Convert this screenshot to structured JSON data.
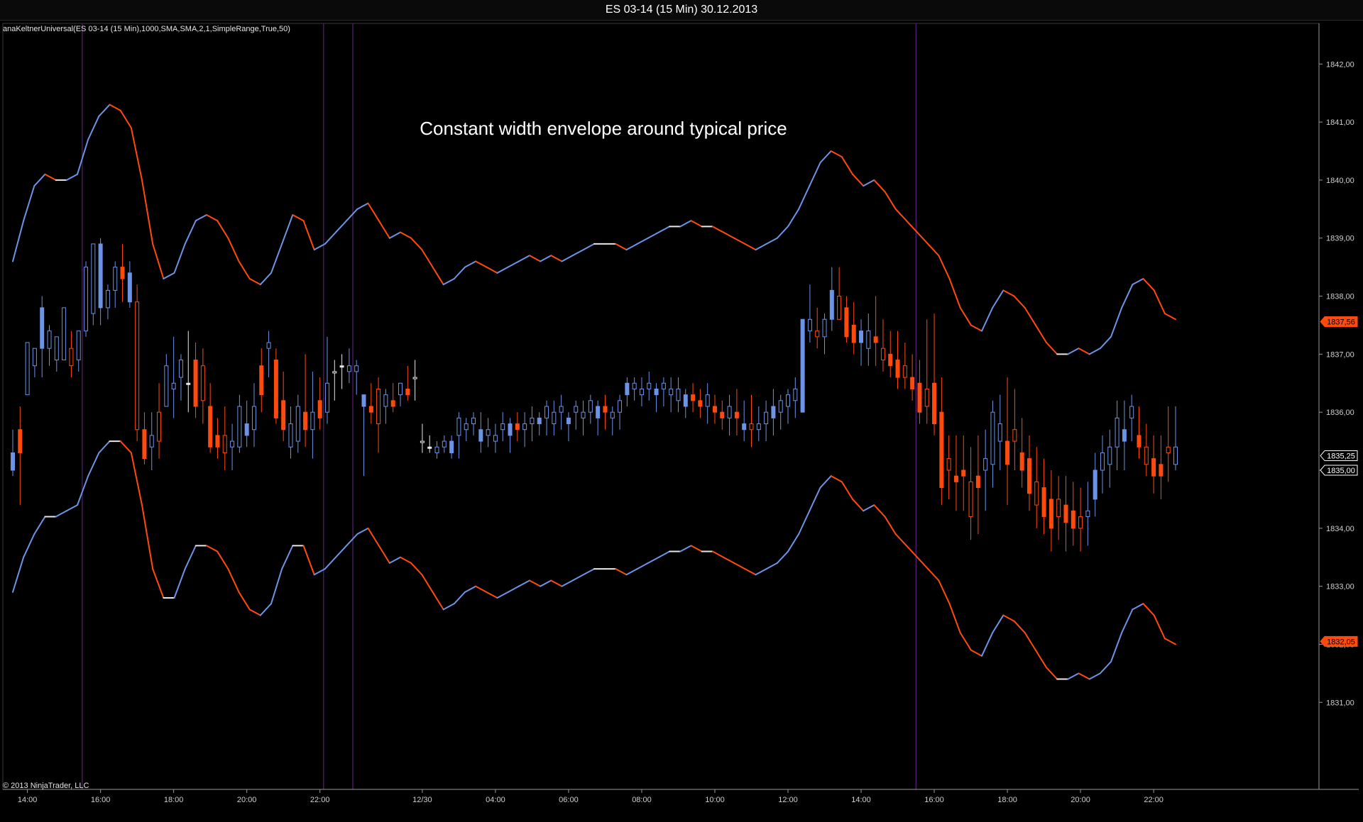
{
  "window": {
    "title": "ES 03-14 (15 Min)  30.12.2013"
  },
  "indicator_label": "anaKeltnerUniversal(ES 03-14 (15 Min),1000,SMA,SMA,2,1,SimpleRange,True,50)",
  "copyright": "© 2013 NinjaTrader, LLC",
  "colors": {
    "background": "#000000",
    "up": "#6d93e6",
    "down": "#ff4a0d",
    "neutral": "#e8e8e8",
    "session_line": "#5a1f7a",
    "axis": "#9a9a9a"
  },
  "chart_data": {
    "type": "candlestick",
    "title": "Constant width envelope around typical price",
    "x_ticks": [
      "14:00",
      "16:00",
      "18:00",
      "20:00",
      "22:00",
      "12/30",
      "04:00",
      "06:00",
      "08:00",
      "10:00",
      "12:00",
      "14:00",
      "16:00",
      "18:00",
      "20:00",
      "22:00"
    ],
    "x_tick_index": [
      2,
      12,
      22,
      32,
      42,
      56,
      66,
      76,
      86,
      96,
      106,
      116,
      126,
      136,
      146,
      156
    ],
    "y_ticks": [
      "1831,00",
      "1832,00",
      "1833,00",
      "1834,00",
      "1835,00",
      "1836,00",
      "1837,00",
      "1838,00",
      "1839,00",
      "1840,00",
      "1841,00",
      "1842,00"
    ],
    "y_range": [
      1829.5,
      1842.7
    ],
    "price_markers": [
      {
        "label": "1837,56",
        "value": 1837.56,
        "style": "down"
      },
      {
        "label": "1835,25",
        "value": 1835.25,
        "style": "current"
      },
      {
        "label": "1835,00",
        "value": 1835.0,
        "style": "outline"
      },
      {
        "label": "1832,05",
        "value": 1832.05,
        "style": "down"
      }
    ],
    "session_breaks": [
      10,
      43,
      47,
      124
    ],
    "candles": [
      [
        1835.0,
        1835.7,
        1834.9,
        1835.3
      ],
      [
        1835.7,
        1836.1,
        1834.4,
        1835.3
      ],
      [
        1836.3,
        1837.2,
        1836.3,
        1837.2
      ],
      [
        1836.8,
        1837.1,
        1836.6,
        1837.1
      ],
      [
        1837.1,
        1838.0,
        1836.6,
        1837.8
      ],
      [
        1837.1,
        1837.5,
        1836.8,
        1837.4
      ],
      [
        1836.9,
        1837.3,
        1836.7,
        1837.3
      ],
      [
        1836.9,
        1837.8,
        1836.9,
        1837.8
      ],
      [
        1837.1,
        1837.4,
        1836.6,
        1836.8
      ],
      [
        1836.9,
        1837.4,
        1836.7,
        1837.4
      ],
      [
        1837.4,
        1838.6,
        1837.3,
        1838.5
      ],
      [
        1837.7,
        1838.9,
        1837.5,
        1838.9
      ],
      [
        1837.8,
        1839.0,
        1837.5,
        1838.9
      ],
      [
        1837.8,
        1838.2,
        1837.6,
        1838.1
      ],
      [
        1838.1,
        1838.6,
        1837.8,
        1838.5
      ],
      [
        1838.5,
        1838.9,
        1837.9,
        1838.3
      ],
      [
        1837.9,
        1838.6,
        1837.8,
        1838.4
      ],
      [
        1837.9,
        1838.2,
        1835.5,
        1835.7
      ],
      [
        1835.7,
        1836.0,
        1835.1,
        1835.2
      ],
      [
        1835.4,
        1836.0,
        1835.0,
        1835.6
      ],
      [
        1836.0,
        1836.5,
        1835.2,
        1835.5
      ],
      [
        1836.1,
        1837.0,
        1836.1,
        1836.8
      ],
      [
        1836.4,
        1837.3,
        1835.9,
        1836.5
      ],
      [
        1836.6,
        1837.0,
        1836.2,
        1836.9
      ],
      [
        1836.5,
        1837.4,
        1836.0,
        1836.5
      ],
      [
        1836.9,
        1837.2,
        1835.9,
        1836.1
      ],
      [
        1836.8,
        1837.1,
        1835.8,
        1836.2
      ],
      [
        1836.1,
        1836.5,
        1835.3,
        1835.4
      ],
      [
        1835.6,
        1835.9,
        1835.2,
        1835.4
      ],
      [
        1835.6,
        1836.1,
        1835.0,
        1835.3
      ],
      [
        1835.4,
        1835.8,
        1835.0,
        1835.5
      ],
      [
        1835.4,
        1836.3,
        1835.3,
        1836.1
      ],
      [
        1835.6,
        1836.2,
        1835.4,
        1835.8
      ],
      [
        1835.7,
        1836.5,
        1835.4,
        1836.1
      ],
      [
        1836.8,
        1837.1,
        1836.0,
        1836.3
      ],
      [
        1837.1,
        1837.4,
        1836.6,
        1837.2
      ],
      [
        1836.9,
        1837.1,
        1835.8,
        1835.9
      ],
      [
        1836.2,
        1836.7,
        1835.5,
        1835.7
      ],
      [
        1835.4,
        1836.1,
        1835.2,
        1835.8
      ],
      [
        1835.5,
        1836.3,
        1835.3,
        1836.1
      ],
      [
        1836.0,
        1837.0,
        1835.4,
        1835.7
      ],
      [
        1835.7,
        1836.7,
        1835.2,
        1836.0
      ],
      [
        1836.2,
        1836.6,
        1835.7,
        1835.9
      ],
      [
        1836.0,
        1837.3,
        1835.8,
        1836.5
      ],
      [
        1836.7,
        1836.9,
        1836.2,
        1836.7
      ],
      [
        1836.8,
        1837.0,
        1836.4,
        1836.8
      ],
      [
        1836.7,
        1837.1,
        1836.5,
        1836.8
      ],
      [
        1836.7,
        1836.9,
        1836.3,
        1836.8
      ],
      [
        1836.1,
        1836.3,
        1834.9,
        1836.3
      ],
      [
        1836.1,
        1836.5,
        1835.8,
        1836.0
      ],
      [
        1836.4,
        1836.6,
        1835.3,
        1835.8
      ],
      [
        1836.1,
        1836.4,
        1835.8,
        1836.3
      ],
      [
        1836.2,
        1836.5,
        1836.0,
        1836.1
      ],
      [
        1836.3,
        1836.5,
        1836.1,
        1836.5
      ],
      [
        1836.4,
        1836.8,
        1836.2,
        1836.3
      ],
      [
        1836.6,
        1836.9,
        1836.2,
        1836.6
      ],
      [
        1835.5,
        1835.8,
        1835.3,
        1835.5
      ],
      [
        1835.4,
        1835.6,
        1835.3,
        1835.4
      ],
      [
        1835.3,
        1835.5,
        1835.2,
        1835.4
      ],
      [
        1835.4,
        1835.6,
        1835.3,
        1835.5
      ],
      [
        1835.3,
        1835.6,
        1835.2,
        1835.5
      ],
      [
        1835.6,
        1836.0,
        1835.2,
        1835.9
      ],
      [
        1835.7,
        1835.9,
        1835.5,
        1835.8
      ],
      [
        1835.8,
        1836.0,
        1835.6,
        1835.9
      ],
      [
        1835.5,
        1836.0,
        1835.3,
        1835.7
      ],
      [
        1835.6,
        1835.9,
        1835.4,
        1835.7
      ],
      [
        1835.5,
        1835.8,
        1835.3,
        1835.6
      ],
      [
        1835.7,
        1836.0,
        1835.5,
        1835.8
      ],
      [
        1835.6,
        1835.9,
        1835.3,
        1835.8
      ],
      [
        1835.8,
        1836.0,
        1835.5,
        1835.7
      ],
      [
        1835.7,
        1836.0,
        1835.4,
        1835.8
      ],
      [
        1835.8,
        1836.1,
        1835.5,
        1835.9
      ],
      [
        1835.8,
        1836.0,
        1835.6,
        1835.9
      ],
      [
        1835.9,
        1836.2,
        1835.6,
        1836.1
      ],
      [
        1835.8,
        1836.2,
        1835.6,
        1836.0
      ],
      [
        1836.0,
        1836.3,
        1835.7,
        1836.1
      ],
      [
        1835.8,
        1836.0,
        1835.5,
        1835.9
      ],
      [
        1836.0,
        1836.2,
        1835.7,
        1836.1
      ],
      [
        1835.9,
        1836.2,
        1835.6,
        1836.0
      ],
      [
        1836.0,
        1836.3,
        1835.8,
        1836.2
      ],
      [
        1835.9,
        1836.2,
        1835.6,
        1836.1
      ],
      [
        1836.1,
        1836.3,
        1835.7,
        1836.0
      ],
      [
        1835.9,
        1836.1,
        1835.6,
        1836.0
      ],
      [
        1836.0,
        1836.3,
        1835.7,
        1836.2
      ],
      [
        1836.3,
        1836.6,
        1836.1,
        1836.5
      ],
      [
        1836.4,
        1836.6,
        1836.2,
        1836.5
      ],
      [
        1836.3,
        1836.6,
        1836.1,
        1836.4
      ],
      [
        1836.4,
        1836.7,
        1836.2,
        1836.5
      ],
      [
        1836.3,
        1836.5,
        1836.0,
        1836.4
      ],
      [
        1836.4,
        1836.6,
        1836.1,
        1836.5
      ],
      [
        1836.3,
        1836.6,
        1836.0,
        1836.4
      ],
      [
        1836.2,
        1836.6,
        1836.0,
        1836.4
      ],
      [
        1836.1,
        1836.4,
        1835.9,
        1836.3
      ],
      [
        1836.3,
        1836.5,
        1836.0,
        1836.2
      ],
      [
        1836.2,
        1836.4,
        1835.9,
        1836.1
      ],
      [
        1836.1,
        1836.5,
        1835.8,
        1836.3
      ],
      [
        1836.1,
        1836.3,
        1835.8,
        1836.0
      ],
      [
        1836.0,
        1836.2,
        1835.7,
        1835.9
      ],
      [
        1835.9,
        1836.3,
        1835.6,
        1836.1
      ],
      [
        1836.0,
        1836.4,
        1835.6,
        1835.9
      ],
      [
        1835.7,
        1836.2,
        1835.5,
        1835.8
      ],
      [
        1835.8,
        1836.3,
        1835.4,
        1835.7
      ],
      [
        1835.7,
        1836.1,
        1835.5,
        1835.8
      ],
      [
        1835.8,
        1836.2,
        1835.5,
        1836.0
      ],
      [
        1835.9,
        1836.4,
        1835.6,
        1836.1
      ],
      [
        1836.0,
        1836.3,
        1835.7,
        1836.2
      ],
      [
        1836.1,
        1836.4,
        1835.8,
        1836.3
      ],
      [
        1836.2,
        1836.6,
        1835.9,
        1836.4
      ],
      [
        1836.0,
        1837.6,
        1836.0,
        1837.6
      ],
      [
        1837.4,
        1838.2,
        1837.2,
        1837.6
      ],
      [
        1837.4,
        1837.8,
        1837.1,
        1837.3
      ],
      [
        1837.3,
        1837.7,
        1837.0,
        1837.6
      ],
      [
        1837.6,
        1838.5,
        1837.4,
        1838.1
      ],
      [
        1838.0,
        1838.5,
        1837.6,
        1837.6
      ],
      [
        1837.8,
        1838.0,
        1837.2,
        1837.3
      ],
      [
        1837.5,
        1837.9,
        1837.0,
        1837.2
      ],
      [
        1837.2,
        1837.6,
        1836.8,
        1837.4
      ],
      [
        1837.1,
        1837.7,
        1836.8,
        1837.4
      ],
      [
        1837.3,
        1838.0,
        1836.8,
        1837.2
      ],
      [
        1837.1,
        1837.6,
        1836.7,
        1836.9
      ],
      [
        1837.0,
        1837.4,
        1836.6,
        1836.8
      ],
      [
        1836.9,
        1837.4,
        1836.4,
        1836.6
      ],
      [
        1836.8,
        1837.2,
        1836.4,
        1836.6
      ],
      [
        1836.6,
        1837.0,
        1836.2,
        1836.4
      ],
      [
        1836.5,
        1836.9,
        1835.8,
        1836.0
      ],
      [
        1836.4,
        1837.6,
        1835.8,
        1836.1
      ],
      [
        1836.5,
        1837.7,
        1835.6,
        1835.8
      ],
      [
        1836.0,
        1836.6,
        1834.4,
        1834.7
      ],
      [
        1835.2,
        1835.6,
        1834.5,
        1835.0
      ],
      [
        1834.9,
        1835.6,
        1834.3,
        1834.8
      ],
      [
        1835.0,
        1835.6,
        1834.3,
        1834.9
      ],
      [
        1834.8,
        1835.4,
        1833.8,
        1834.2
      ],
      [
        1834.9,
        1835.6,
        1833.9,
        1834.7
      ],
      [
        1835.0,
        1835.7,
        1834.3,
        1835.2
      ],
      [
        1835.1,
        1836.2,
        1834.7,
        1836.0
      ],
      [
        1835.5,
        1836.3,
        1835.0,
        1835.8
      ],
      [
        1835.5,
        1836.6,
        1834.4,
        1835.1
      ],
      [
        1835.7,
        1836.4,
        1835.0,
        1835.5
      ],
      [
        1835.3,
        1835.9,
        1834.7,
        1835.0
      ],
      [
        1835.2,
        1835.6,
        1834.3,
        1834.6
      ],
      [
        1834.8,
        1835.4,
        1834.0,
        1834.4
      ],
      [
        1834.7,
        1835.2,
        1833.9,
        1834.2
      ],
      [
        1834.5,
        1835.0,
        1833.6,
        1834.0
      ],
      [
        1834.5,
        1834.9,
        1833.8,
        1834.2
      ],
      [
        1834.4,
        1834.9,
        1833.6,
        1834.1
      ],
      [
        1834.3,
        1834.8,
        1833.7,
        1834.0
      ],
      [
        1834.2,
        1834.7,
        1833.6,
        1834.0
      ],
      [
        1834.2,
        1834.8,
        1833.7,
        1834.3
      ],
      [
        1834.5,
        1835.3,
        1834.2,
        1835.0
      ],
      [
        1835.0,
        1835.6,
        1834.6,
        1835.3
      ],
      [
        1835.1,
        1835.7,
        1834.7,
        1835.4
      ],
      [
        1835.4,
        1836.2,
        1835.0,
        1835.9
      ],
      [
        1835.5,
        1836.2,
        1835.0,
        1835.7
      ],
      [
        1835.9,
        1836.3,
        1835.5,
        1836.1
      ],
      [
        1835.6,
        1836.1,
        1835.2,
        1835.4
      ],
      [
        1835.4,
        1835.8,
        1834.9,
        1835.1
      ],
      [
        1835.2,
        1835.6,
        1834.6,
        1834.9
      ],
      [
        1835.1,
        1835.6,
        1834.5,
        1834.9
      ],
      [
        1835.4,
        1836.1,
        1834.8,
        1835.3
      ],
      [
        1835.1,
        1836.1,
        1835.0,
        1835.4
      ]
    ],
    "upper_band": [
      1838.6,
      1839.3,
      1839.9,
      1840.1,
      1840.0,
      1840.0,
      1840.1,
      1840.7,
      1841.1,
      1841.3,
      1841.2,
      1840.9,
      1840.0,
      1838.9,
      1838.3,
      1838.4,
      1838.9,
      1839.3,
      1839.4,
      1839.3,
      1839.0,
      1838.6,
      1838.3,
      1838.2,
      1838.4,
      1838.9,
      1839.4,
      1839.3,
      1838.8,
      1838.9,
      1839.1,
      1839.3,
      1839.5,
      1839.6,
      1839.3,
      1839.0,
      1839.1,
      1839.0,
      1838.8,
      1838.5,
      1838.2,
      1838.3,
      1838.5,
      1838.6,
      1838.5,
      1838.4,
      1838.5,
      1838.6,
      1838.7,
      1838.6,
      1838.7,
      1838.6,
      1838.7,
      1838.8,
      1838.9,
      1838.9,
      1838.9,
      1838.8,
      1838.9,
      1839.0,
      1839.1,
      1839.2,
      1839.2,
      1839.3,
      1839.2,
      1839.2,
      1839.1,
      1839.0,
      1838.9,
      1838.8,
      1838.9,
      1839.0,
      1839.2,
      1839.5,
      1839.9,
      1840.3,
      1840.5,
      1840.4,
      1840.1,
      1839.9,
      1840.0,
      1839.8,
      1839.5,
      1839.3,
      1839.1,
      1838.9,
      1838.7,
      1838.3,
      1837.8,
      1837.5,
      1837.4,
      1837.8,
      1838.1,
      1838.0,
      1837.8,
      1837.5,
      1837.2,
      1837.0,
      1837.0,
      1837.1,
      1837.0,
      1837.1,
      1837.3,
      1837.8,
      1838.2,
      1838.3,
      1838.1,
      1837.7,
      1837.6
    ],
    "lower_band": [
      1832.9,
      1833.5,
      1833.9,
      1834.2,
      1834.2,
      1834.3,
      1834.4,
      1834.9,
      1835.3,
      1835.5,
      1835.5,
      1835.3,
      1834.4,
      1833.3,
      1832.8,
      1832.8,
      1833.3,
      1833.7,
      1833.7,
      1833.6,
      1833.3,
      1832.9,
      1832.6,
      1832.5,
      1832.7,
      1833.3,
      1833.7,
      1833.7,
      1833.2,
      1833.3,
      1833.5,
      1833.7,
      1833.9,
      1834.0,
      1833.7,
      1833.4,
      1833.5,
      1833.4,
      1833.2,
      1832.9,
      1832.6,
      1832.7,
      1832.9,
      1833.0,
      1832.9,
      1832.8,
      1832.9,
      1833.0,
      1833.1,
      1833.0,
      1833.1,
      1833.0,
      1833.1,
      1833.2,
      1833.3,
      1833.3,
      1833.3,
      1833.2,
      1833.3,
      1833.4,
      1833.5,
      1833.6,
      1833.6,
      1833.7,
      1833.6,
      1833.6,
      1833.5,
      1833.4,
      1833.3,
      1833.2,
      1833.3,
      1833.4,
      1833.6,
      1833.9,
      1834.3,
      1834.7,
      1834.9,
      1834.8,
      1834.5,
      1834.3,
      1834.4,
      1834.2,
      1833.9,
      1833.7,
      1833.5,
      1833.3,
      1833.1,
      1832.7,
      1832.2,
      1831.9,
      1831.8,
      1832.2,
      1832.5,
      1832.4,
      1832.2,
      1831.9,
      1831.6,
      1831.4,
      1831.4,
      1831.5,
      1831.4,
      1831.5,
      1831.7,
      1832.2,
      1832.6,
      1832.7,
      1832.5,
      1832.1,
      1832.0
    ]
  }
}
